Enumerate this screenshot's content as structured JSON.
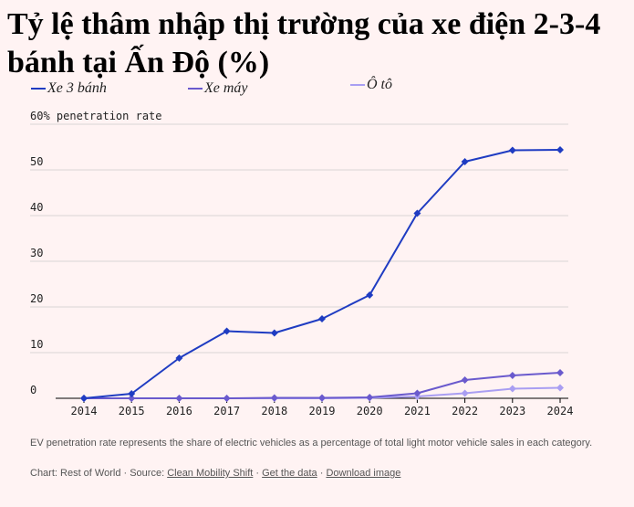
{
  "chart_data": {
    "type": "line",
    "title": "Tỷ lệ thâm nhập thị trường của xe điện 2-3-4 bánh tại Ấn Độ (%)",
    "ylabel": "penetration rate",
    "x": [
      "2014",
      "2015",
      "2016",
      "2017",
      "2018",
      "2019",
      "2020",
      "2021",
      "2022",
      "2023",
      "2024"
    ],
    "y_ticks": [
      "60%",
      "50",
      "40",
      "30",
      "20",
      "10",
      "0"
    ],
    "ylim": [
      0,
      60
    ],
    "grid": true,
    "legend_position": "top-left",
    "series": [
      {
        "name": "Xe 3 bánh",
        "color": "#1f3cc2",
        "values": [
          0,
          1,
          8.8,
          14.7,
          14.3,
          17.4,
          22.6,
          40.5,
          51.8,
          54.3,
          54.4
        ]
      },
      {
        "name": "Xe máy",
        "color": "#6a5acd",
        "values": [
          0,
          0,
          0,
          0,
          0.1,
          0.1,
          0.2,
          1.1,
          4,
          5,
          5.6
        ]
      },
      {
        "name": "Ô tô",
        "color": "#a99ef2",
        "values": [
          0,
          0,
          0,
          0,
          0,
          0,
          0.1,
          0.4,
          1.1,
          2.1,
          2.3
        ]
      }
    ]
  },
  "footnote": "EV penetration rate represents the share of electric vehicles as a percentage of total light motor vehicle sales in each category.",
  "credits": {
    "prefix": "Chart: Rest of World · Source: ",
    "source": "Clean Mobility Shift",
    "sep1": " · ",
    "get_data": "Get the data",
    "sep2": " · ",
    "download": "Download image"
  }
}
